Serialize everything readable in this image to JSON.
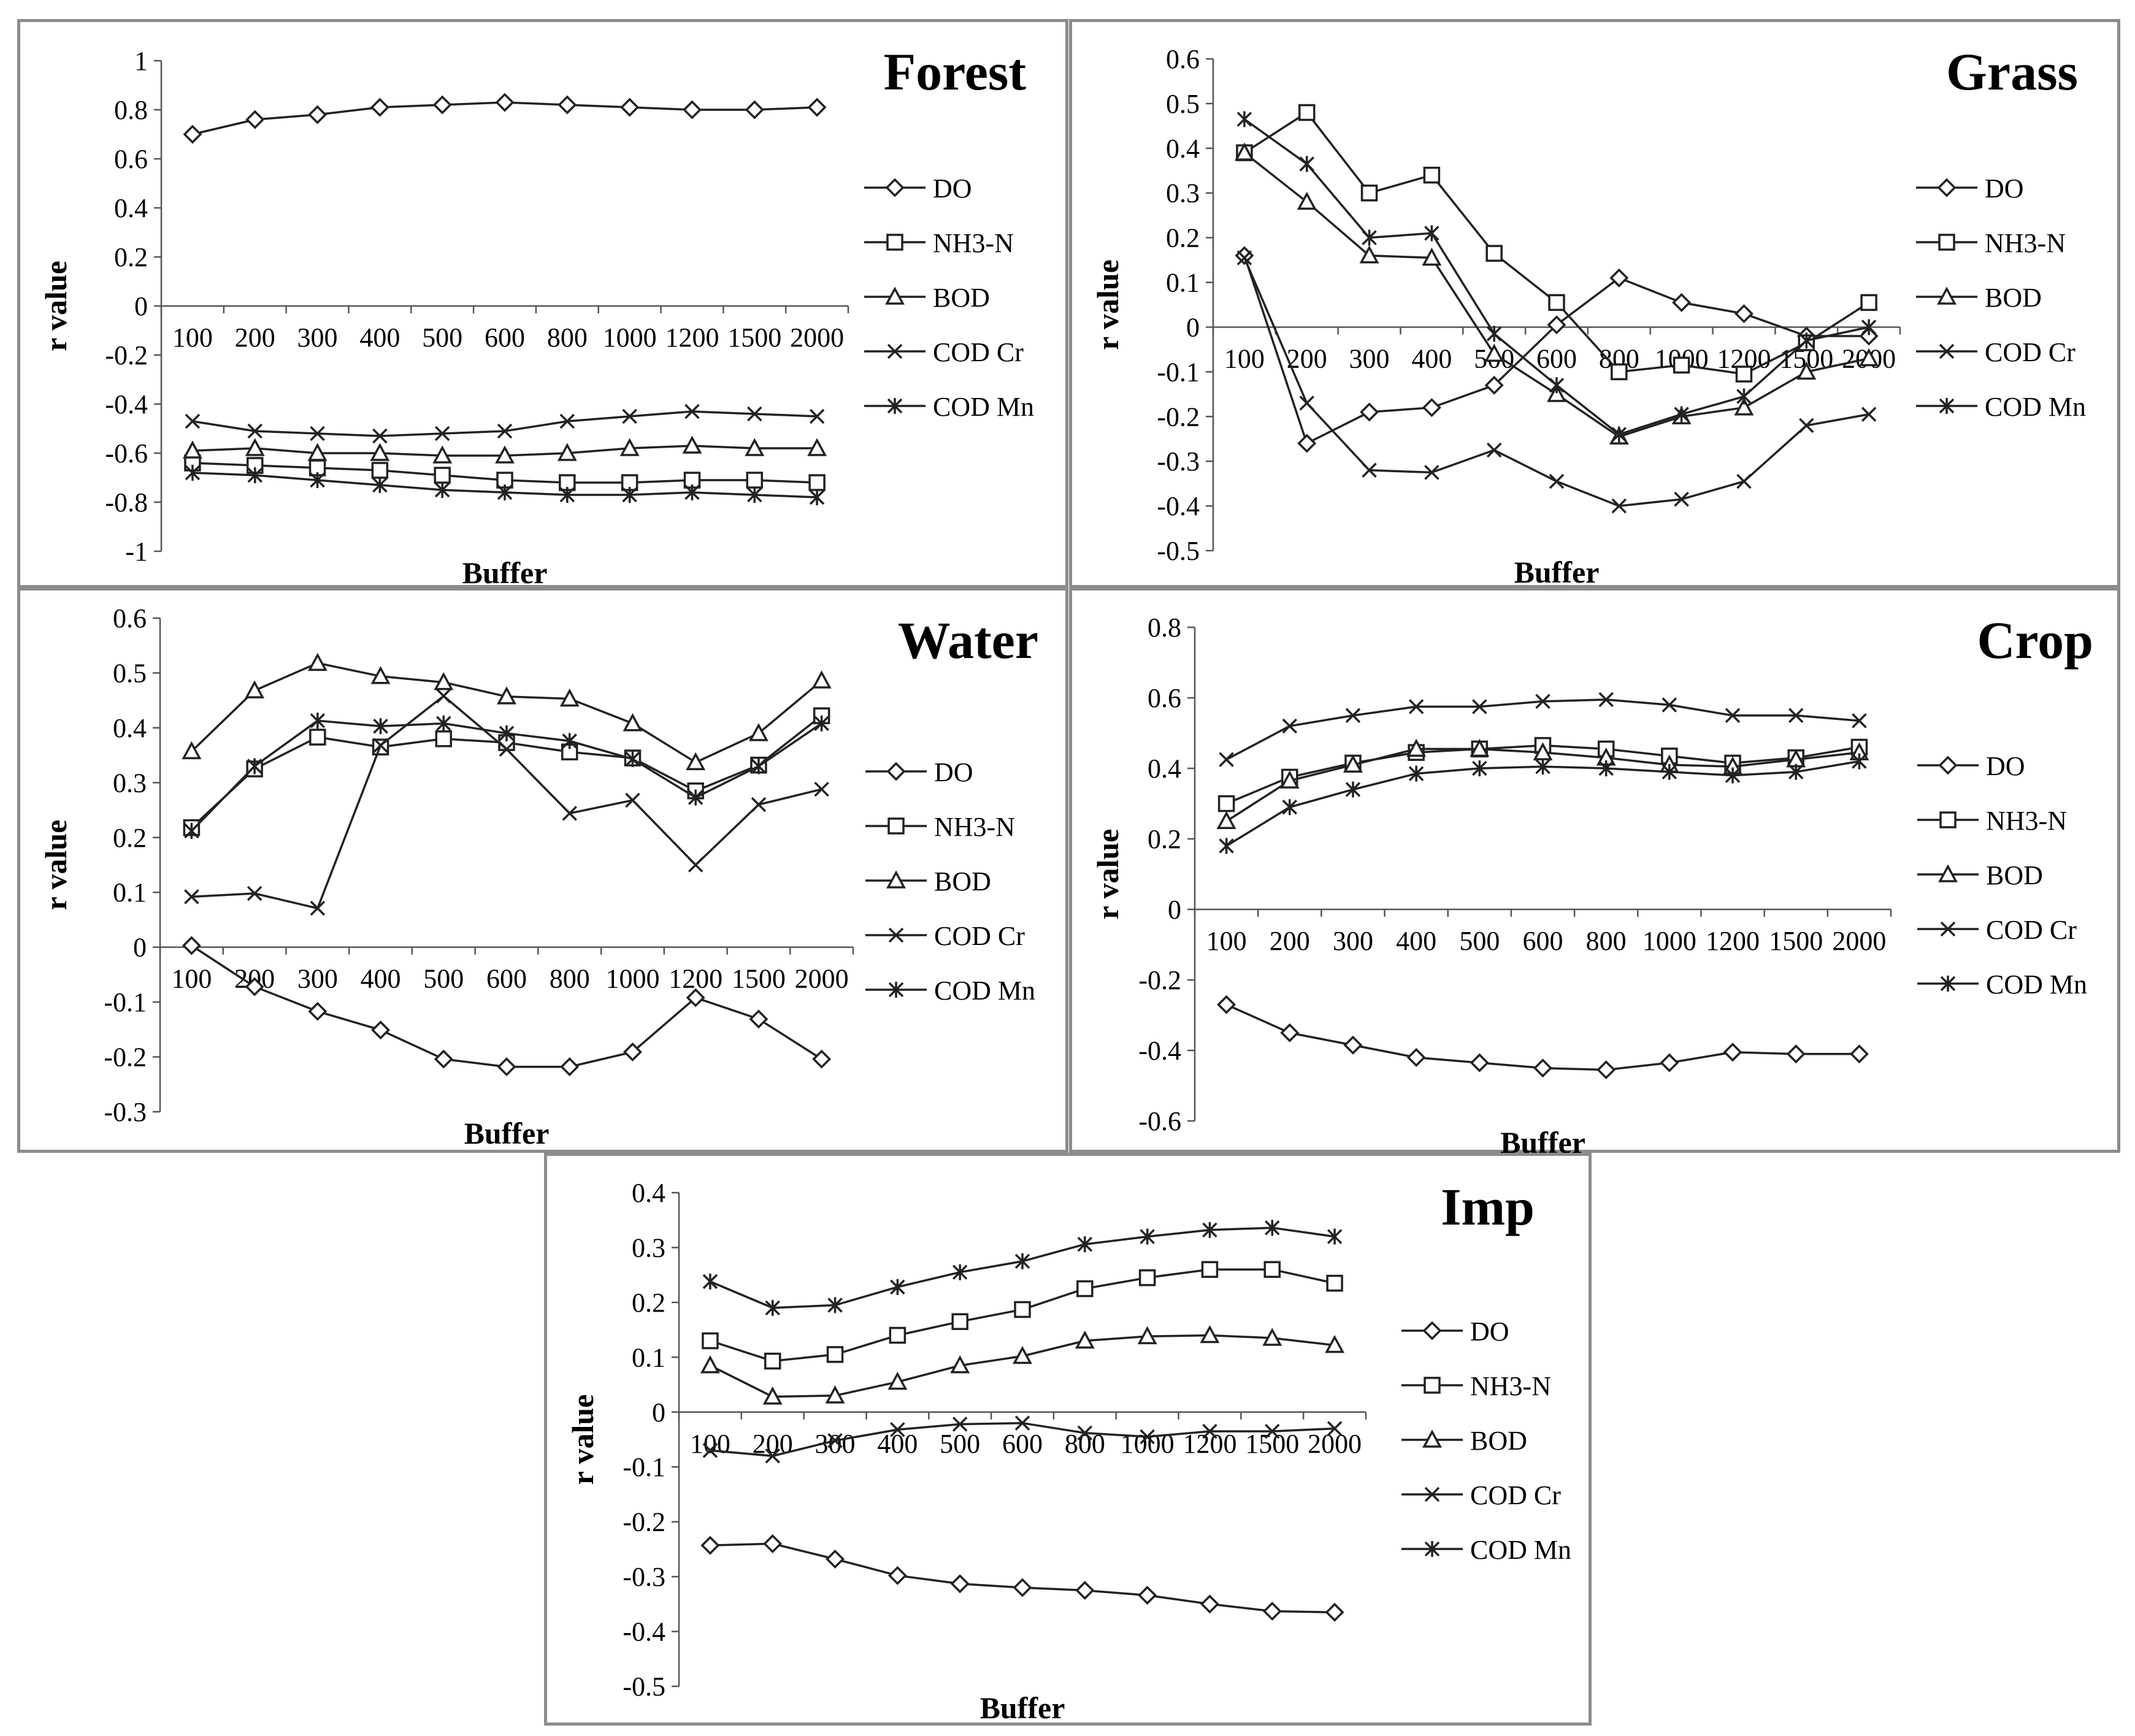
{
  "chart_data": [
    {
      "type": "line",
      "title": "Forest",
      "xlabel": "Buffer",
      "ylabel": "r value",
      "categories": [
        "100",
        "200",
        "300",
        "400",
        "500",
        "600",
        "800",
        "1000",
        "1200",
        "1500",
        "2000"
      ],
      "ylim": [
        -1,
        1
      ],
      "ytick_step": 0.2,
      "yticks": [
        "1",
        "0.8",
        "0.6",
        "0.4",
        "0.2",
        "0",
        "-0.2",
        "-0.4",
        "-0.6",
        "-0.8",
        "-1"
      ],
      "series": [
        {
          "name": "DO",
          "marker": "diamond",
          "values": [
            0.7,
            0.76,
            0.78,
            0.81,
            0.82,
            0.83,
            0.82,
            0.81,
            0.8,
            0.8,
            0.81
          ]
        },
        {
          "name": "NH3-N",
          "marker": "square",
          "values": [
            -0.64,
            -0.65,
            -0.66,
            -0.67,
            -0.69,
            -0.71,
            -0.72,
            -0.72,
            -0.71,
            -0.71,
            -0.72
          ]
        },
        {
          "name": "BOD",
          "marker": "triangle",
          "values": [
            -0.59,
            -0.58,
            -0.6,
            -0.6,
            -0.61,
            -0.61,
            -0.6,
            -0.58,
            -0.57,
            -0.58,
            -0.58
          ]
        },
        {
          "name": "COD Cr",
          "marker": "x",
          "values": [
            -0.47,
            -0.51,
            -0.52,
            -0.53,
            -0.52,
            -0.51,
            -0.47,
            -0.45,
            -0.43,
            -0.44,
            -0.45
          ]
        },
        {
          "name": "COD Mn",
          "marker": "star",
          "values": [
            -0.68,
            -0.69,
            -0.71,
            -0.73,
            -0.75,
            -0.76,
            -0.77,
            -0.77,
            -0.76,
            -0.77,
            -0.78
          ]
        }
      ]
    },
    {
      "type": "line",
      "title": "Grass",
      "xlabel": "Buffer",
      "ylabel": "r value",
      "categories": [
        "100",
        "200",
        "300",
        "400",
        "500",
        "600",
        "800",
        "1000",
        "1200",
        "1500",
        "2000"
      ],
      "ylim": [
        -0.5,
        0.6
      ],
      "ytick_step": 0.1,
      "yticks": [
        "0.6",
        "0.5",
        "0.4",
        "0.3",
        "0.2",
        "0.1",
        "0",
        "-0.1",
        "-0.2",
        "-0.3",
        "-0.4",
        "-0.5"
      ],
      "series": [
        {
          "name": "DO",
          "marker": "diamond",
          "values": [
            0.16,
            -0.26,
            -0.19,
            -0.18,
            -0.13,
            0.005,
            0.11,
            0.055,
            0.03,
            -0.02,
            -0.02
          ]
        },
        {
          "name": "NH3-N",
          "marker": "square",
          "values": [
            0.39,
            0.48,
            0.3,
            0.34,
            0.165,
            0.055,
            -0.1,
            -0.085,
            -0.105,
            -0.035,
            0.055
          ]
        },
        {
          "name": "BOD",
          "marker": "triangle",
          "values": [
            0.39,
            0.28,
            0.16,
            0.155,
            -0.06,
            -0.15,
            -0.245,
            -0.2,
            -0.18,
            -0.1,
            -0.07
          ]
        },
        {
          "name": "COD Cr",
          "marker": "x",
          "values": [
            0.155,
            -0.17,
            -0.32,
            -0.325,
            -0.275,
            -0.345,
            -0.4,
            -0.385,
            -0.345,
            -0.22,
            -0.195
          ]
        },
        {
          "name": "COD Mn",
          "marker": "star",
          "values": [
            0.465,
            0.365,
            0.2,
            0.21,
            -0.015,
            -0.13,
            -0.24,
            -0.195,
            -0.155,
            -0.03,
            0.0
          ]
        }
      ]
    },
    {
      "type": "line",
      "title": "Water",
      "xlabel": "Buffer",
      "ylabel": "r value",
      "categories": [
        "100",
        "200",
        "300",
        "400",
        "500",
        "600",
        "800",
        "1000",
        "1200",
        "1500",
        "2000"
      ],
      "ylim": [
        -0.3,
        0.6
      ],
      "ytick_step": 0.1,
      "yticks": [
        "0.6",
        "0.5",
        "0.4",
        "0.3",
        "0.2",
        "0.1",
        "0",
        "-0.1",
        "-0.2",
        "-0.3"
      ],
      "series": [
        {
          "name": "DO",
          "marker": "diamond",
          "values": [
            0.003,
            -0.072,
            -0.117,
            -0.151,
            -0.204,
            -0.218,
            -0.218,
            -0.191,
            -0.092,
            -0.131,
            -0.204
          ]
        },
        {
          "name": "NH3-N",
          "marker": "square",
          "values": [
            0.218,
            0.325,
            0.383,
            0.365,
            0.38,
            0.373,
            0.356,
            0.345,
            0.285,
            0.332,
            0.422
          ]
        },
        {
          "name": "BOD",
          "marker": "triangle",
          "values": [
            0.357,
            0.468,
            0.518,
            0.494,
            0.483,
            0.457,
            0.453,
            0.408,
            0.337,
            0.39,
            0.486
          ]
        },
        {
          "name": "COD Cr",
          "marker": "x",
          "values": [
            0.092,
            0.098,
            0.071,
            0.368,
            0.458,
            0.361,
            0.244,
            0.268,
            0.15,
            0.26,
            0.288
          ]
        },
        {
          "name": "COD Mn",
          "marker": "star",
          "values": [
            0.212,
            0.33,
            0.413,
            0.403,
            0.408,
            0.39,
            0.376,
            0.343,
            0.273,
            0.33,
            0.408
          ]
        }
      ]
    },
    {
      "type": "line",
      "title": "Crop",
      "xlabel": "Buffer",
      "ylabel": "r value",
      "categories": [
        "100",
        "200",
        "300",
        "400",
        "500",
        "600",
        "800",
        "1000",
        "1200",
        "1500",
        "2000"
      ],
      "ylim": [
        -0.6,
        0.8
      ],
      "ytick_step": 0.2,
      "yticks": [
        "0.8",
        "0.6",
        "0.4",
        "0.2",
        "0",
        "-0.2",
        "-0.4",
        "-0.6"
      ],
      "series": [
        {
          "name": "DO",
          "marker": "diamond",
          "values": [
            -0.27,
            -0.35,
            -0.385,
            -0.42,
            -0.435,
            -0.45,
            -0.455,
            -0.435,
            -0.405,
            -0.41,
            -0.41
          ]
        },
        {
          "name": "NH3-N",
          "marker": "square",
          "values": [
            0.3,
            0.375,
            0.415,
            0.445,
            0.455,
            0.465,
            0.455,
            0.435,
            0.415,
            0.43,
            0.46
          ]
        },
        {
          "name": "BOD",
          "marker": "triangle",
          "values": [
            0.25,
            0.365,
            0.41,
            0.455,
            0.455,
            0.445,
            0.43,
            0.41,
            0.405,
            0.425,
            0.445
          ]
        },
        {
          "name": "COD Cr",
          "marker": "x",
          "values": [
            0.425,
            0.52,
            0.55,
            0.575,
            0.575,
            0.59,
            0.595,
            0.58,
            0.55,
            0.55,
            0.535
          ]
        },
        {
          "name": "COD Mn",
          "marker": "star",
          "values": [
            0.18,
            0.29,
            0.34,
            0.385,
            0.4,
            0.405,
            0.4,
            0.39,
            0.38,
            0.39,
            0.42
          ]
        }
      ]
    },
    {
      "type": "line",
      "title": "Imp",
      "xlabel": "Buffer",
      "ylabel": "r value",
      "categories": [
        "100",
        "200",
        "300",
        "400",
        "500",
        "600",
        "800",
        "1000",
        "1200",
        "1500",
        "2000"
      ],
      "ylim": [
        -0.5,
        0.4
      ],
      "ytick_step": 0.1,
      "yticks": [
        "0.4",
        "0.3",
        "0.2",
        "0.1",
        "0",
        "-0.1",
        "-0.2",
        "-0.3",
        "-0.4",
        "-0.5"
      ],
      "series": [
        {
          "name": "DO",
          "marker": "diamond",
          "values": [
            -0.243,
            -0.24,
            -0.268,
            -0.298,
            -0.313,
            -0.32,
            -0.325,
            -0.334,
            -0.35,
            -0.363,
            -0.365
          ]
        },
        {
          "name": "NH3-N",
          "marker": "square",
          "values": [
            0.13,
            0.093,
            0.105,
            0.14,
            0.165,
            0.187,
            0.225,
            0.245,
            0.26,
            0.26,
            0.235
          ]
        },
        {
          "name": "BOD",
          "marker": "triangle",
          "values": [
            0.085,
            0.028,
            0.03,
            0.055,
            0.085,
            0.102,
            0.13,
            0.138,
            0.14,
            0.135,
            0.122
          ]
        },
        {
          "name": "COD Cr",
          "marker": "x",
          "values": [
            -0.07,
            -0.08,
            -0.052,
            -0.032,
            -0.022,
            -0.02,
            -0.038,
            -0.045,
            -0.035,
            -0.035,
            -0.03
          ]
        },
        {
          "name": "COD Mn",
          "marker": "star",
          "values": [
            0.238,
            0.19,
            0.195,
            0.228,
            0.255,
            0.275,
            0.306,
            0.32,
            0.332,
            0.336,
            0.32
          ]
        }
      ]
    }
  ]
}
